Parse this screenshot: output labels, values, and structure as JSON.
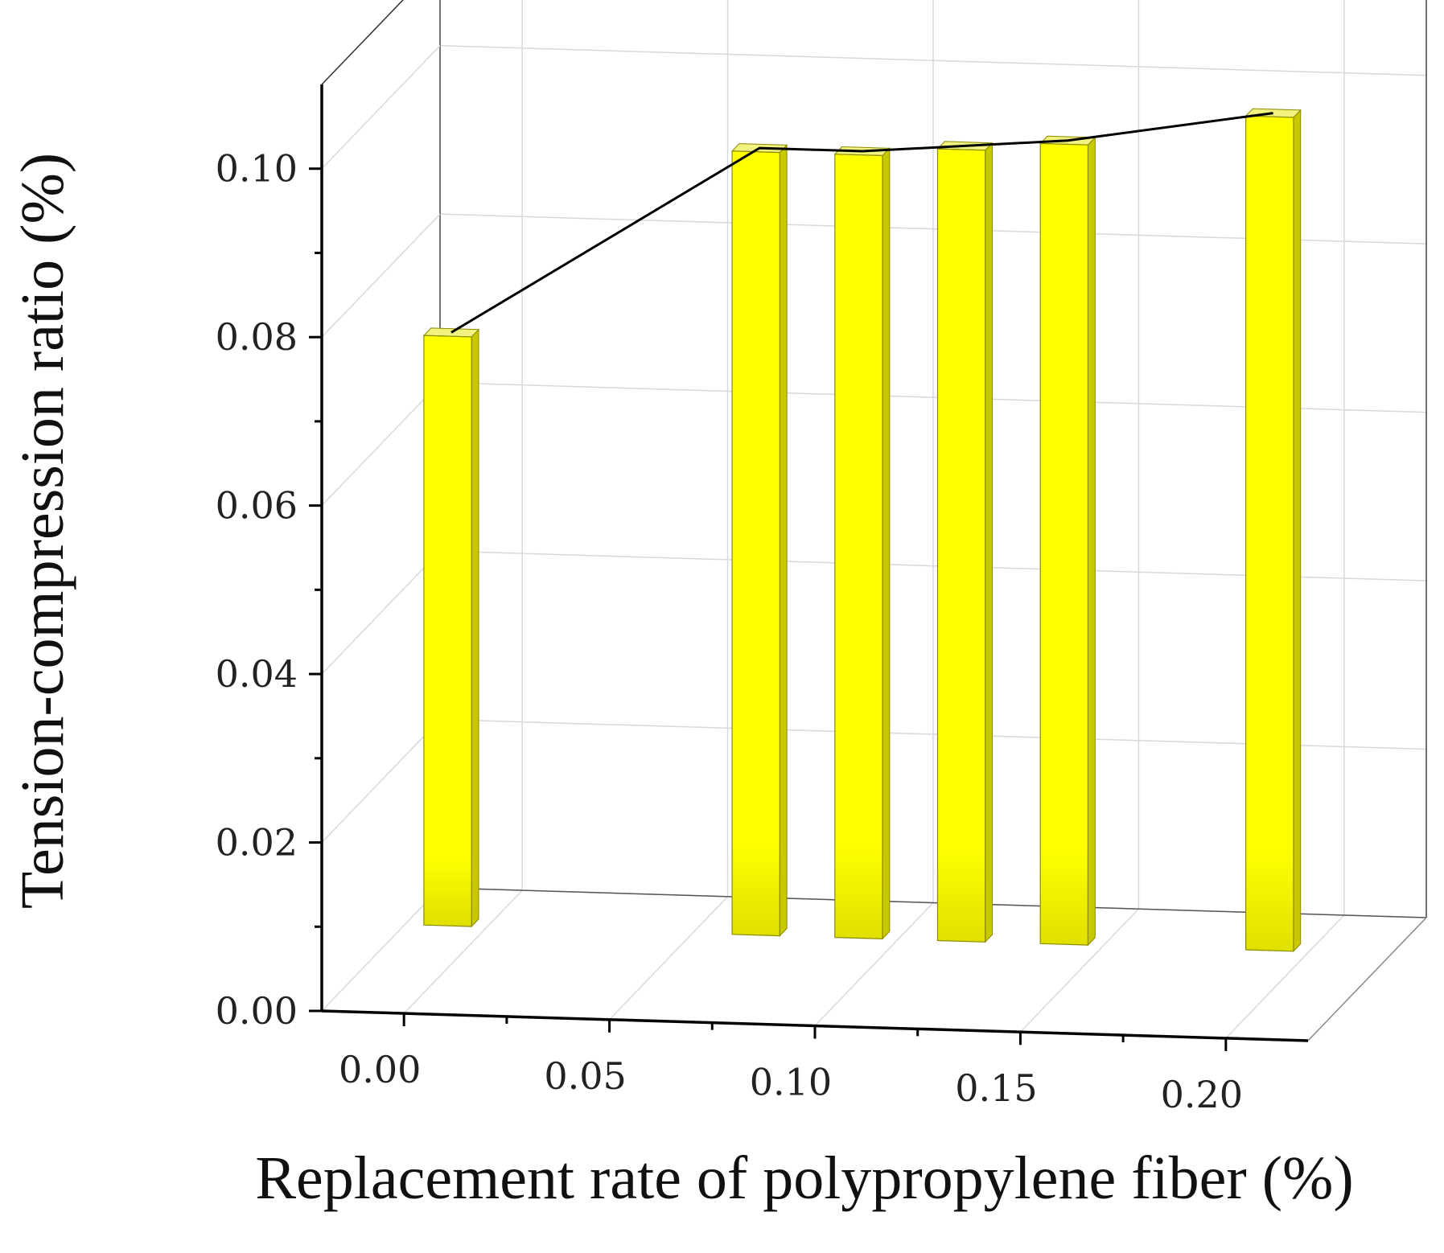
{
  "chart_data": {
    "type": "bar",
    "style": "3d-bar-with-line",
    "x": [
      0.0,
      0.075,
      0.1,
      0.125,
      0.15,
      0.2
    ],
    "values": [
      0.075,
      0.098,
      0.098,
      0.099,
      0.1,
      0.104
    ],
    "x_ticks": [
      "0.00",
      "0.05",
      "0.10",
      "0.15",
      "0.20"
    ],
    "y_ticks": [
      "0.00",
      "0.02",
      "0.04",
      "0.06",
      "0.08",
      "0.10"
    ],
    "xlabel": "Replacement rate of polypropylene fiber (%)",
    "ylabel": "Tension-compression ratio (%)",
    "xlim": [
      -0.02,
      0.22
    ],
    "ylim": [
      0,
      0.11
    ],
    "grid": true,
    "colors": {
      "bar": "#ffff00",
      "bar_side": "#c8c800",
      "bar_dark": "#dede00",
      "line": "#000000",
      "grid": "#d9d9d9"
    }
  }
}
